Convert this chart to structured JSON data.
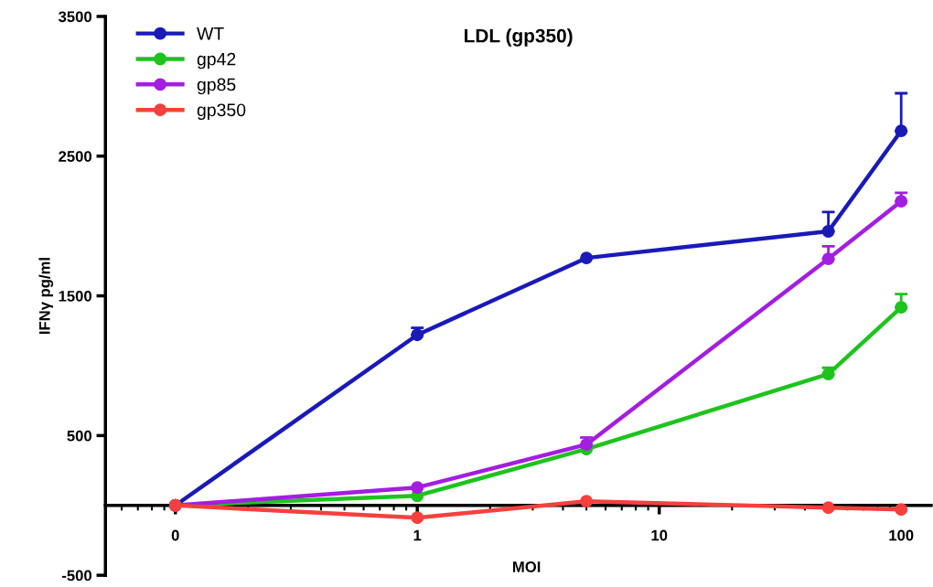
{
  "chart_data": {
    "type": "line",
    "title": "LDL (gp350)",
    "xlabel": "MOI",
    "ylabel": "IFNγ pg/ml",
    "x": [
      0.1,
      1,
      5,
      50,
      100
    ],
    "log": "x",
    "xlim": [
      0.0514,
      133
    ],
    "xticks": [
      {
        "value": 0.1,
        "label": "0"
      },
      1,
      10,
      100
    ],
    "ylim": [
      -500,
      3500
    ],
    "yticks": [
      -500,
      500,
      1500,
      2500,
      3500
    ],
    "marker": "circle",
    "line_style": "solid",
    "grid": false,
    "legend": "top left",
    "series": [
      {
        "name": "WT",
        "color": "#1a1ab8",
        "values": [
          0,
          1221,
          1771,
          1962,
          2681
        ],
        "errors": [
          null,
          [
            1221,
            1271
          ],
          null,
          [
            1962,
            2100
          ],
          [
            2681,
            2950
          ]
        ]
      },
      {
        "name": "gp42",
        "color": "#1ec31e",
        "values": [
          0,
          69,
          403,
          940,
          1418
        ],
        "errors": [
          null,
          null,
          null,
          [
            940,
            985
          ],
          [
            1418,
            1513
          ]
        ]
      },
      {
        "name": "gp85",
        "color": "#a31ee0",
        "values": [
          0,
          128,
          436,
          1765,
          2177
        ],
        "errors": [
          null,
          null,
          [
            436,
            486
          ],
          [
            1765,
            1855
          ],
          [
            2177,
            2237
          ]
        ]
      },
      {
        "name": "gp350",
        "color": "#f5403e",
        "values": [
          0,
          -88,
          30,
          -16,
          -29
        ]
      }
    ]
  }
}
